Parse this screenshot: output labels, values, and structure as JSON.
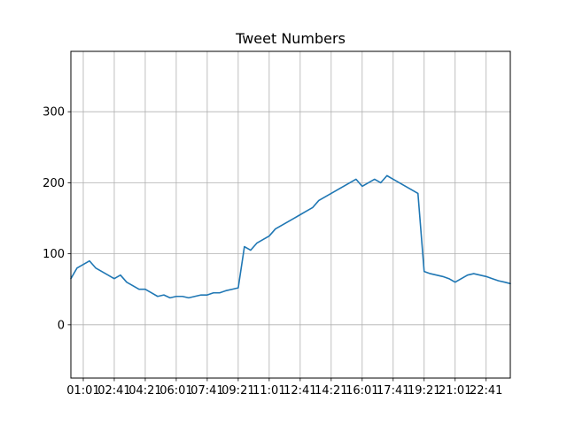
{
  "chart_data": {
    "type": "line",
    "title": "Tweet Numbers",
    "xlabel": "",
    "ylabel": "",
    "grid": true,
    "ylim": [
      -75,
      385
    ],
    "xlim": [
      "00:21",
      "23:59"
    ],
    "y_ticks": [
      0,
      100,
      200,
      300
    ],
    "x_ticks": [
      "01:01",
      "02:41",
      "04:21",
      "06:01",
      "07:41",
      "09:21",
      "11:01",
      "12:41",
      "14:21",
      "16:01",
      "17:41",
      "19:21",
      "21:01",
      "22:41"
    ],
    "series": [
      {
        "color": "#1f77b4",
        "x": [
          "00:21",
          "00:41",
          "01:01",
          "01:21",
          "01:41",
          "02:01",
          "02:21",
          "02:41",
          "03:01",
          "03:21",
          "03:41",
          "04:01",
          "04:21",
          "04:41",
          "05:01",
          "05:21",
          "05:41",
          "06:01",
          "06:21",
          "06:41",
          "07:01",
          "07:21",
          "07:41",
          "08:01",
          "08:21",
          "08:41",
          "09:01",
          "09:21",
          "09:41",
          "10:01",
          "10:21",
          "10:41",
          "11:01",
          "11:21",
          "11:41",
          "12:01",
          "12:21",
          "12:41",
          "13:01",
          "13:21",
          "13:41",
          "14:01",
          "14:21",
          "14:41",
          "15:01",
          "15:21",
          "15:41",
          "16:01",
          "16:21",
          "16:41",
          "17:01",
          "17:21",
          "17:41",
          "18:01",
          "18:21",
          "18:41",
          "19:01",
          "19:21",
          "19:41",
          "20:01",
          "20:21",
          "20:41",
          "21:01",
          "21:21",
          "21:41",
          "22:01",
          "22:21",
          "22:41",
          "23:01",
          "23:21",
          "23:41",
          "23:59"
        ],
        "y": [
          65,
          80,
          85,
          90,
          80,
          75,
          70,
          65,
          70,
          60,
          55,
          50,
          50,
          45,
          40,
          42,
          38,
          40,
          40,
          38,
          40,
          42,
          42,
          45,
          45,
          48,
          50,
          52,
          110,
          105,
          115,
          120,
          125,
          135,
          140,
          145,
          150,
          155,
          160,
          165,
          175,
          180,
          185,
          190,
          195,
          200,
          205,
          195,
          200,
          205,
          200,
          210,
          205,
          200,
          195,
          190,
          185,
          75,
          72,
          70,
          68,
          65,
          60,
          65,
          70,
          72,
          70,
          68,
          65,
          62,
          60,
          58
        ]
      }
    ]
  }
}
